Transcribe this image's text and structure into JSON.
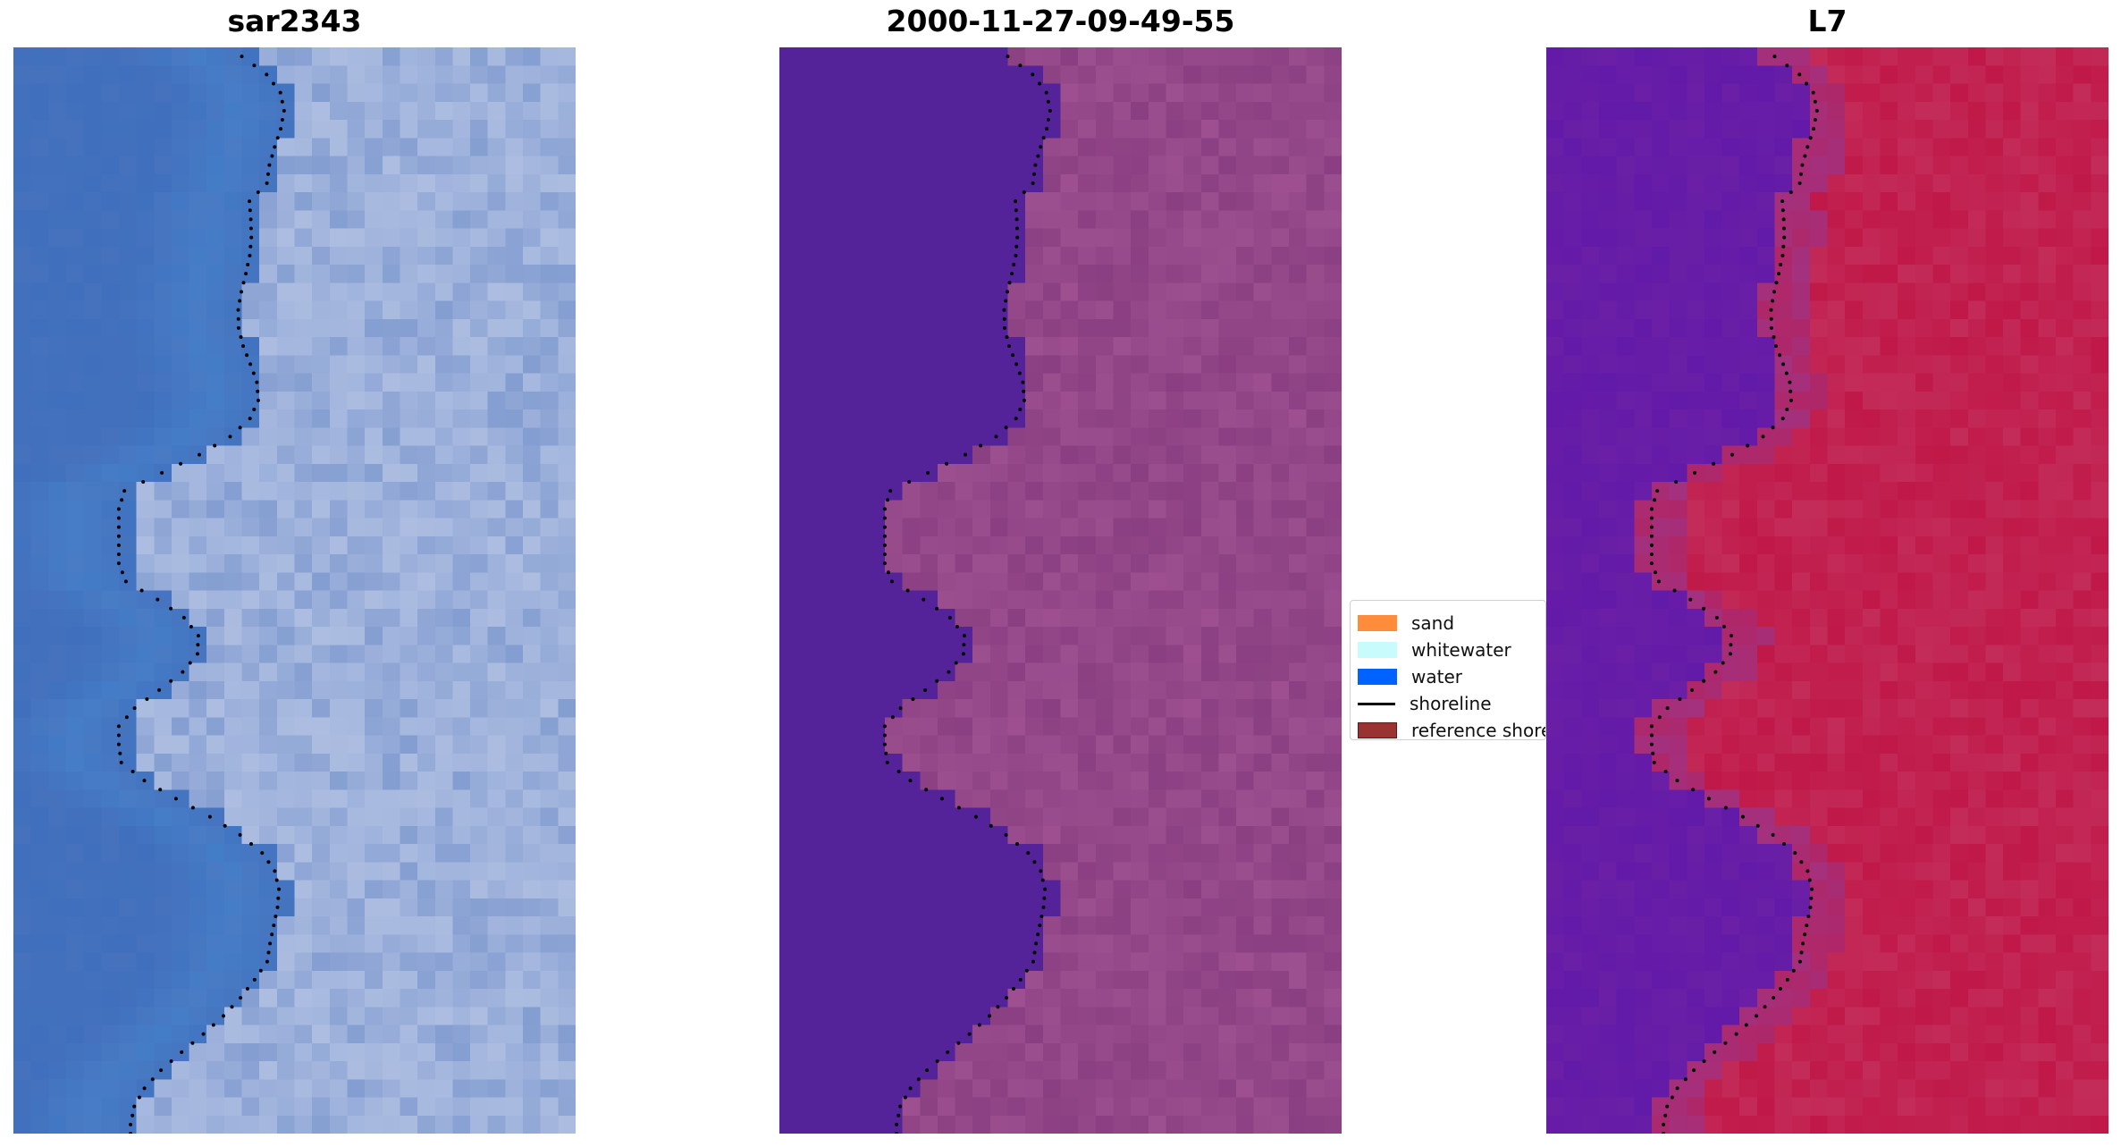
{
  "panels": [
    {
      "title": "sar2343",
      "palette": "rgb-natural"
    },
    {
      "title": "2000-11-27-09-49-55",
      "palette": "classified"
    },
    {
      "title": "L7",
      "palette": "false-color"
    }
  ],
  "legend": {
    "items": [
      {
        "label": "sand",
        "color": "#ff8c3a",
        "kind": "patch"
      },
      {
        "label": "whitewater",
        "color": "#c8fcfc",
        "kind": "patch"
      },
      {
        "label": "water",
        "color": "#0062ff",
        "kind": "patch"
      },
      {
        "label": "shoreline",
        "color": "#000000",
        "kind": "line"
      },
      {
        "label": "reference shoreline",
        "color": "#9b3232",
        "kind": "patch"
      }
    ]
  },
  "colors": {
    "water_class": "#54239a",
    "sand_class": "#8a3f82",
    "sea_blue": "#3f6fbd",
    "foam": "#dfe6f6",
    "false_water": "#6a1fa6",
    "false_land": "#c01848",
    "shoreline_dots": "#000000"
  }
}
